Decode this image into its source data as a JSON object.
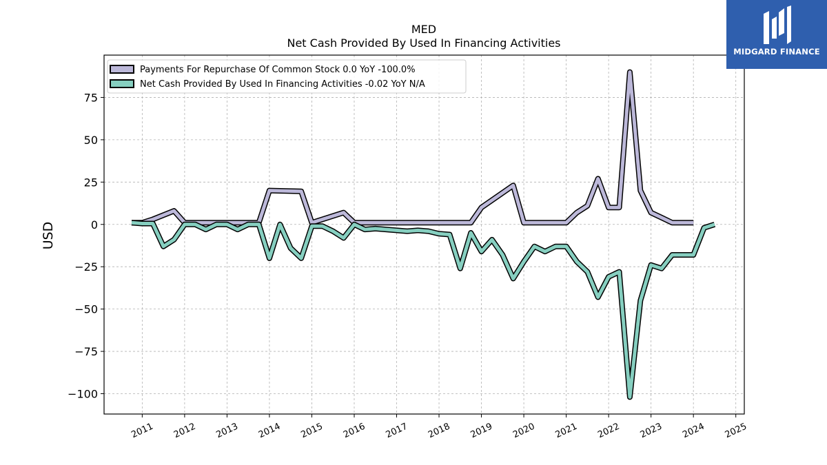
{
  "brand": {
    "name": "MIDGARD FINANCE",
    "color": "#2f5fae"
  },
  "chart_data": {
    "type": "line",
    "title": "MED",
    "subtitle": "Net Cash Provided By Used In Financing Activities",
    "xlabel": "",
    "ylabel": "USD",
    "xlim": [
      2010.1,
      2025.2
    ],
    "ylim": [
      -112,
      100
    ],
    "xticks": [
      "2011",
      "2012",
      "2013",
      "2014",
      "2015",
      "2016",
      "2017",
      "2018",
      "2019",
      "2020",
      "2021",
      "2022",
      "2023",
      "2024",
      "2025"
    ],
    "yticks": [
      {
        "value": 75,
        "label": "75"
      },
      {
        "value": 50,
        "label": "50"
      },
      {
        "value": 25,
        "label": "25"
      },
      {
        "value": 0,
        "label": "0"
      },
      {
        "value": -25,
        "label": "−25"
      },
      {
        "value": -50,
        "label": "−50"
      },
      {
        "value": -75,
        "label": "−75"
      },
      {
        "value": -100,
        "label": "−100"
      }
    ],
    "grid": true,
    "legend_position": "top-left",
    "series": [
      {
        "name": "Payments For Repurchase Of Common Stock",
        "legend_label": "Payments For Repurchase Of Common Stock  0.0 YoY -100.0%",
        "color": "#bcb8d9",
        "x": [
          2010.75,
          2011.0,
          2011.25,
          2011.75,
          2012.0,
          2012.25,
          2012.5,
          2012.75,
          2013.0,
          2013.25,
          2013.5,
          2013.75,
          2014.0,
          2014.75,
          2015.0,
          2015.75,
          2016.0,
          2016.25,
          2016.5,
          2016.75,
          2017.0,
          2017.25,
          2017.5,
          2017.75,
          2018.0,
          2018.25,
          2018.5,
          2018.75,
          2019.0,
          2019.75,
          2020.0,
          2020.25,
          2020.5,
          2020.75,
          2021.0,
          2021.25,
          2021.5,
          2021.75,
          2022.0,
          2022.25,
          2022.5,
          2022.75,
          2023.0,
          2023.25,
          2023.5,
          2023.75,
          2024.0
        ],
        "values": [
          1,
          1,
          3,
          8,
          1,
          1,
          1,
          1,
          1,
          1,
          1,
          1,
          20,
          19.5,
          1,
          7,
          1,
          1,
          1,
          1,
          1,
          1,
          1,
          1,
          1,
          1,
          1,
          1,
          10,
          23,
          1,
          1,
          1,
          1,
          1,
          7,
          11,
          27,
          10,
          10,
          90,
          20,
          7,
          4,
          1,
          1,
          1
        ]
      },
      {
        "name": "Net Cash Provided By Used In Financing Activities",
        "legend_label": "Net Cash Provided By Used In Financing Activities  -0.02 YoY N/A",
        "color": "#86cfc0",
        "x": [
          2010.75,
          2011.0,
          2011.25,
          2011.5,
          2011.75,
          2012.0,
          2012.25,
          2012.5,
          2012.75,
          2013.0,
          2013.25,
          2013.5,
          2013.75,
          2014.0,
          2014.25,
          2014.5,
          2014.75,
          2015.0,
          2015.25,
          2015.5,
          2015.75,
          2016.0,
          2016.25,
          2016.5,
          2016.75,
          2017.0,
          2017.25,
          2017.5,
          2017.75,
          2018.0,
          2018.25,
          2018.5,
          2018.75,
          2019.0,
          2019.25,
          2019.5,
          2019.75,
          2020.0,
          2020.25,
          2020.5,
          2020.75,
          2021.0,
          2021.25,
          2021.5,
          2021.75,
          2022.0,
          2022.25,
          2022.5,
          2022.75,
          2023.0,
          2023.25,
          2023.5,
          2023.75,
          2024.0,
          2024.25,
          2024.5
        ],
        "values": [
          1,
          0.5,
          0.5,
          -13,
          -9,
          0,
          0,
          -3,
          0,
          0,
          -3,
          0,
          0,
          -20,
          0,
          -14,
          -20,
          -1,
          -1,
          -4,
          -8,
          0,
          -3,
          -2.5,
          -3,
          -3.5,
          -4,
          -3.5,
          -4,
          -5.5,
          -6,
          -26,
          -5,
          -16,
          -9,
          -18,
          -32,
          -22,
          -13,
          -16,
          -13,
          -13,
          -22,
          -28,
          -43,
          -31,
          -28,
          -102,
          -45,
          -24,
          -26,
          -18,
          -18,
          -18,
          -2,
          0
        ]
      }
    ]
  }
}
